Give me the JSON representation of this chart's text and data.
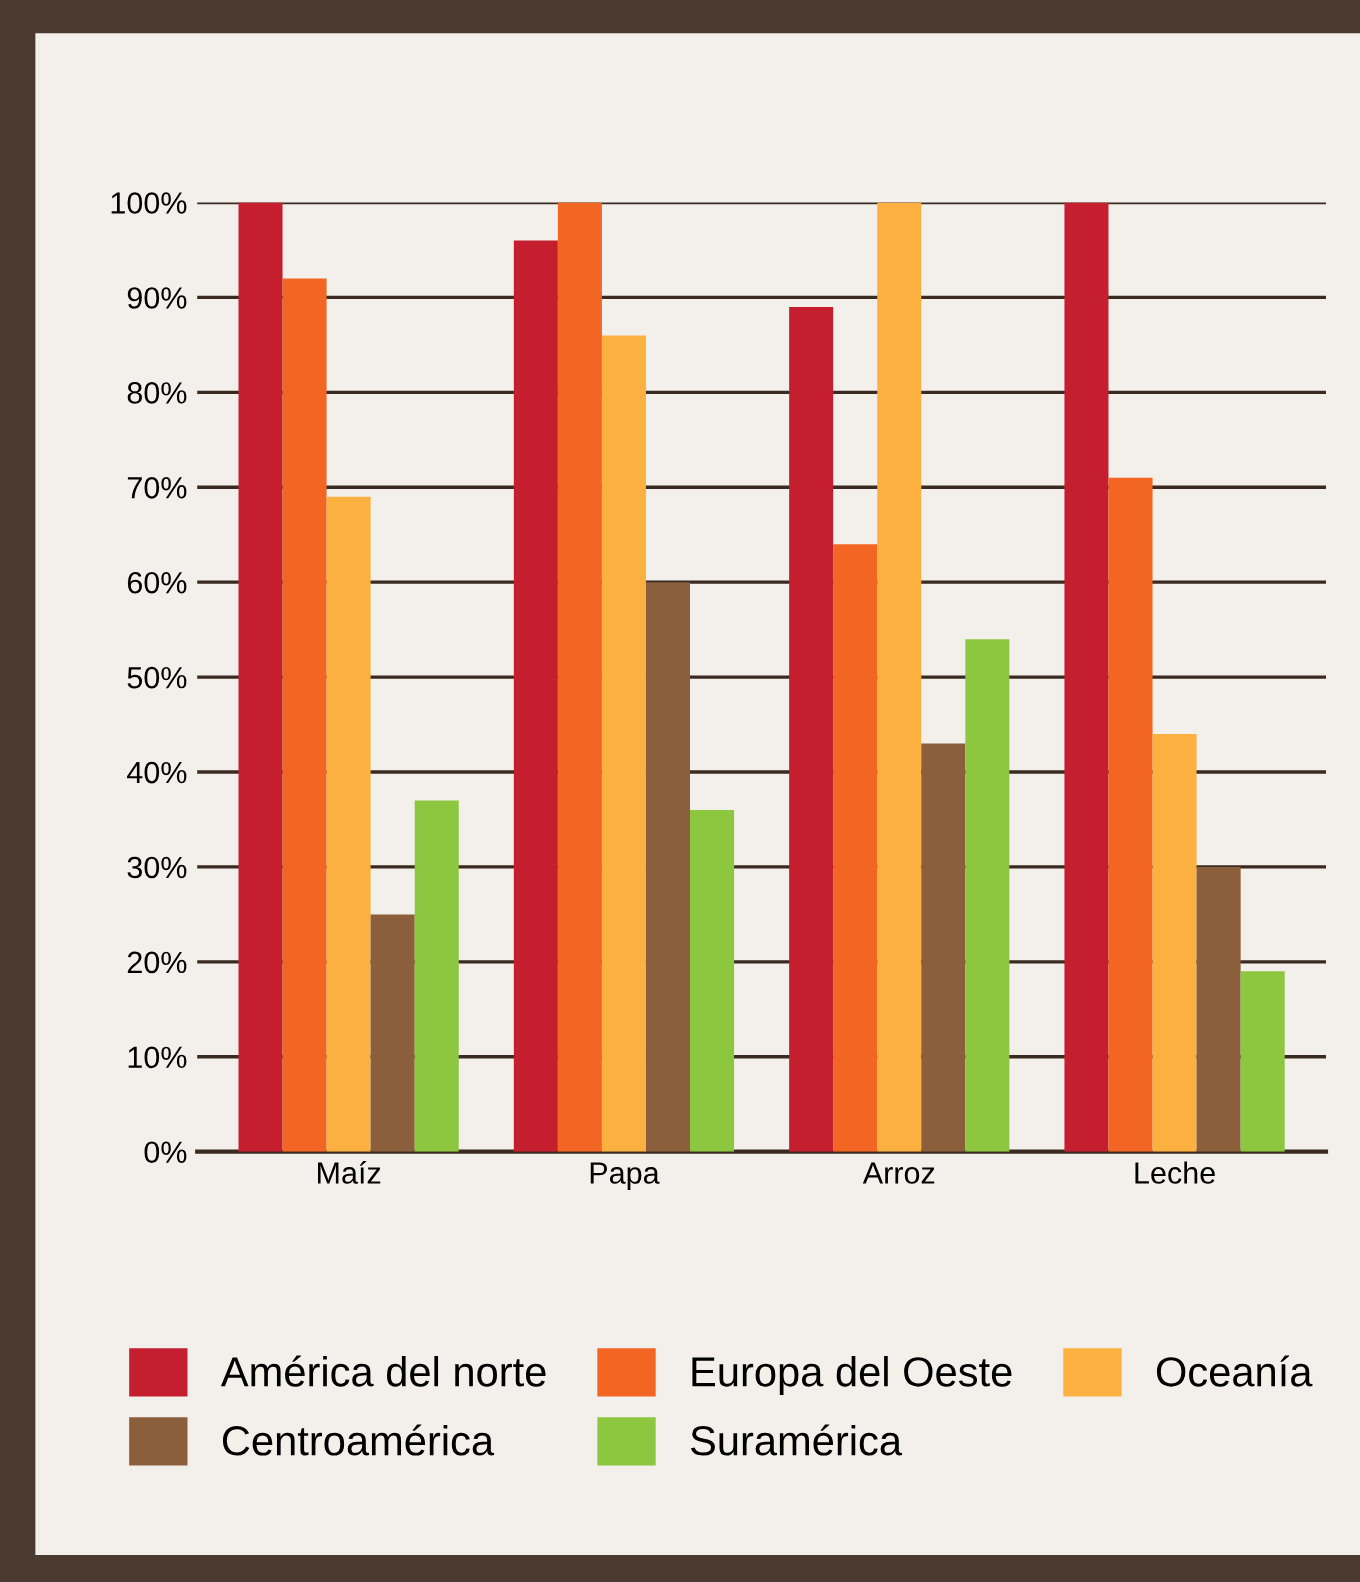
{
  "chart_data": {
    "type": "bar",
    "categories": [
      "Maíz",
      "Papa",
      "Arroz",
      "Leche"
    ],
    "series": [
      {
        "name": "América del norte",
        "color": "#c41e2f",
        "values": [
          100,
          96,
          89,
          100
        ]
      },
      {
        "name": "Europa del Oeste",
        "color": "#f26522",
        "values": [
          92,
          100,
          64,
          71
        ]
      },
      {
        "name": "Oceanía",
        "color": "#fbb040",
        "values": [
          69,
          86,
          100,
          44
        ]
      },
      {
        "name": "Centroamérica",
        "color": "#8b5e3c",
        "values": [
          25,
          60,
          43,
          30
        ]
      },
      {
        "name": "Suramérica",
        "color": "#8dc63f",
        "values": [
          37,
          36,
          54,
          19
        ]
      }
    ],
    "ylim": [
      0,
      100
    ],
    "yticks": [
      {
        "value": 0,
        "label": "0%"
      },
      {
        "value": 10,
        "label": "10%"
      },
      {
        "value": 20,
        "label": "20%"
      },
      {
        "value": 30,
        "label": "30%"
      },
      {
        "value": 40,
        "label": "40%"
      },
      {
        "value": 50,
        "label": "50%"
      },
      {
        "value": 60,
        "label": "60%"
      },
      {
        "value": 70,
        "label": "70%"
      },
      {
        "value": 80,
        "label": "80%"
      },
      {
        "value": 90,
        "label": "90%"
      },
      {
        "value": 100,
        "label": "100%"
      }
    ],
    "grid": "y",
    "legend": "bottom"
  }
}
